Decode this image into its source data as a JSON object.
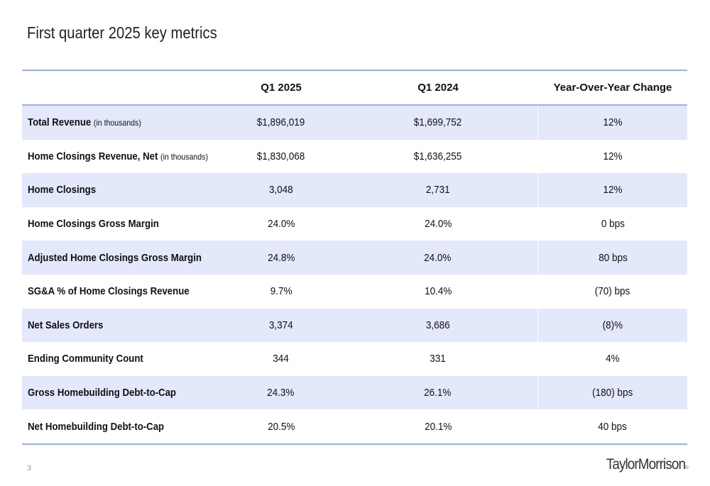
{
  "page": {
    "title": "First quarter 2025 key metrics",
    "page_number": "3",
    "logo_text": "TaylorMorrison",
    "logo_mark": "®"
  },
  "table": {
    "headers": [
      "",
      "Q1 2025",
      "Q1 2024",
      "Year-Over-Year Change"
    ],
    "rows": [
      {
        "metric": "Total Revenue",
        "unit": "(in thousands)",
        "q1_2025": "$1,896,019",
        "q1_2024": "$1,699,752",
        "yoy": "12%",
        "shaded": true
      },
      {
        "metric": "Home Closings Revenue, Net",
        "unit": "(in thousands)",
        "q1_2025": "$1,830,068",
        "q1_2024": "$1,636,255",
        "yoy": "12%",
        "shaded": false
      },
      {
        "metric": "Home Closings",
        "unit": "",
        "q1_2025": "3,048",
        "q1_2024": "2,731",
        "yoy": "12%",
        "shaded": true
      },
      {
        "metric": "Home Closings Gross Margin",
        "unit": "",
        "q1_2025": "24.0%",
        "q1_2024": "24.0%",
        "yoy": "0 bps",
        "shaded": false
      },
      {
        "metric": "Adjusted Home Closings Gross Margin",
        "unit": "",
        "q1_2025": "24.8%",
        "q1_2024": "24.0%",
        "yoy": "80 bps",
        "shaded": true
      },
      {
        "metric": "SG&A % of Home Closings Revenue",
        "unit": "",
        "q1_2025": "9.7%",
        "q1_2024": "10.4%",
        "yoy": "(70) bps",
        "shaded": false
      },
      {
        "metric": "Net Sales Orders",
        "unit": "",
        "q1_2025": "3,374",
        "q1_2024": "3,686",
        "yoy": "(8)%",
        "shaded": true
      },
      {
        "metric": "Ending Community Count",
        "unit": "",
        "q1_2025": "344",
        "q1_2024": "331",
        "yoy": "4%",
        "shaded": false
      },
      {
        "metric": "Gross Homebuilding Debt-to-Cap",
        "unit": "",
        "q1_2025": "24.3%",
        "q1_2024": "26.1%",
        "yoy": "(180) bps",
        "shaded": true
      },
      {
        "metric": "Net Homebuilding Debt-to-Cap",
        "unit": "",
        "q1_2025": "20.5%",
        "q1_2024": "20.1%",
        "yoy": "40 bps",
        "shaded": false
      }
    ]
  },
  "colors": {
    "rule": "#9aaef0",
    "shade": "#e3e8fb"
  }
}
